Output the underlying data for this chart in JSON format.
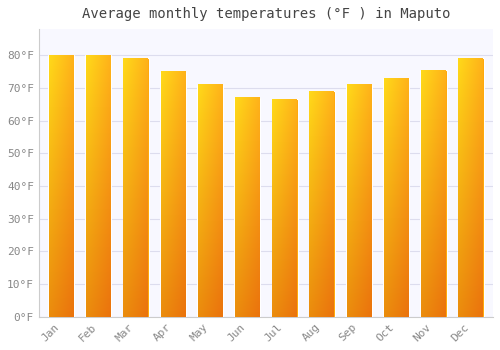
{
  "title": "Average monthly temperatures (°F ) in Maputo",
  "months": [
    "Jan",
    "Feb",
    "Mar",
    "Apr",
    "May",
    "Jun",
    "Jul",
    "Aug",
    "Sep",
    "Oct",
    "Nov",
    "Dec"
  ],
  "values": [
    80,
    80,
    79,
    75,
    71,
    67,
    66.5,
    69,
    71,
    73,
    75.5,
    79
  ],
  "bar_color_top": "#FFD700",
  "bar_color_bottom": "#FF8C00",
  "bar_color_left": "#FFD700",
  "bar_color_right": "#E07000",
  "background_color": "#FFFFFF",
  "plot_bg_color": "#F8F8FF",
  "grid_color": "#DDDDEE",
  "text_color": "#888888",
  "title_color": "#444444",
  "ylim": [
    0,
    88
  ],
  "yticks": [
    0,
    10,
    20,
    30,
    40,
    50,
    60,
    70,
    80
  ],
  "ytick_labels": [
    "0°F",
    "10°F",
    "20°F",
    "30°F",
    "40°F",
    "50°F",
    "60°F",
    "70°F",
    "80°F"
  ],
  "title_fontsize": 10,
  "tick_fontsize": 8,
  "font_family": "monospace"
}
